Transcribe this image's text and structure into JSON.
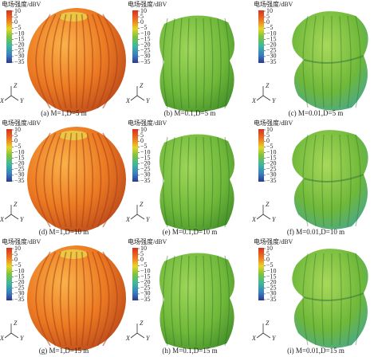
{
  "colorbar": {
    "label": "电场强度/dBV",
    "ticks": [
      "10",
      "5",
      "0",
      "−5",
      "−10",
      "−15",
      "−20",
      "−25",
      "−30",
      "−35"
    ]
  },
  "axes": {
    "x": "X",
    "y": "Y",
    "z": "Z"
  },
  "panels": [
    {
      "caption": "(a) M=1,D=5 m"
    },
    {
      "caption": "(b) M=0.1,D=5 m"
    },
    {
      "caption": "(c) M=0.01,D=5 m"
    },
    {
      "caption": "(d) M=1,D=10 m"
    },
    {
      "caption": "(e) M=0.1,D=10 m"
    },
    {
      "caption": "(f) M=0.01,D=10 m"
    },
    {
      "caption": "(g) M=1,D=15 m"
    },
    {
      "caption": "(h) M=0.1,D=15 m"
    },
    {
      "caption": "(i) M=0.01,D=15 m"
    }
  ]
}
